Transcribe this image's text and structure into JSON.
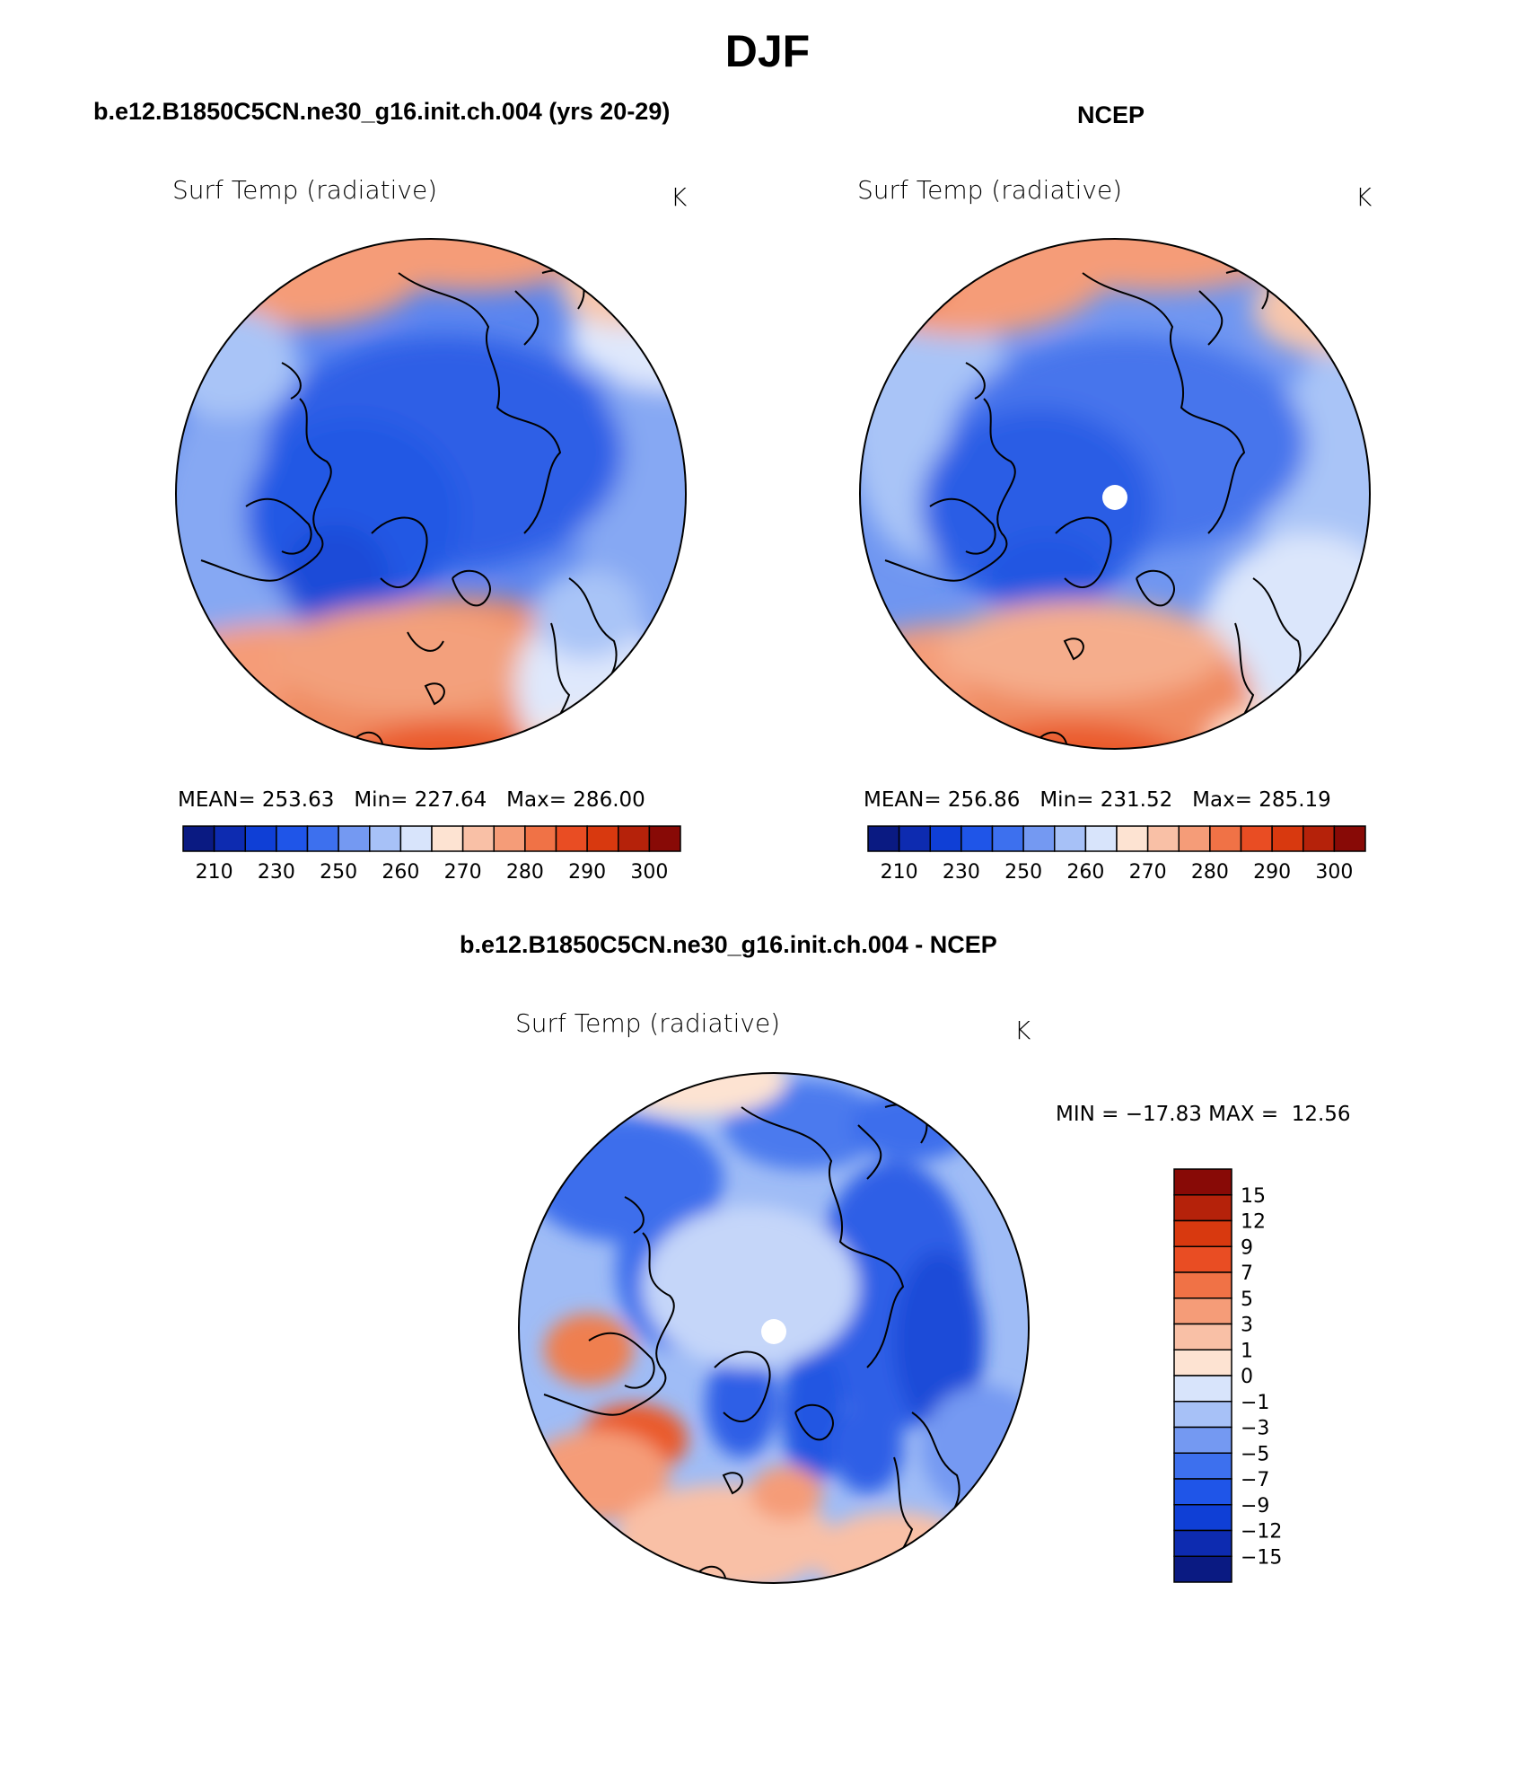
{
  "page": {
    "title": "DJF",
    "colors": {
      "deep_blue": "#1f4fdc",
      "mid_blue": "#4f7ff0",
      "light_blue": "#a9c4f7",
      "pale_blue": "#dbe6fb",
      "pale_orange": "#f9d3bd",
      "orange": "#f08a60",
      "red_orange": "#ea5a2c"
    }
  },
  "panels": {
    "model": {
      "header": "b.e12.B1850C5CN.ne30_g16.init.ch.004 (yrs 20-29)",
      "variable": "Surf Temp (radiative)",
      "units": "K",
      "stats": {
        "mean_label": "MEAN=",
        "mean": "253.63",
        "min_label": "Min=",
        "min": "227.64",
        "max_label": "Max=",
        "max": "286.00"
      }
    },
    "obs": {
      "header": "NCEP",
      "variable": "Surf Temp (radiative)",
      "units": "K",
      "stats": {
        "mean_label": "MEAN=",
        "mean": "256.86",
        "min_label": "Min=",
        "min": "231.52",
        "max_label": "Max=",
        "max": "285.19"
      }
    },
    "diff": {
      "header": "b.e12.B1850C5CN.ne30_g16.init.ch.004 - NCEP",
      "variable": "Surf Temp (radiative)",
      "units": "K",
      "stats": {
        "min_label": "MIN =",
        "min": "−17.83",
        "max_label": "MAX =",
        "max": "12.56"
      }
    }
  },
  "colorbars": {
    "abs": {
      "colors": [
        "#0a1a82",
        "#0d2bb0",
        "#0f3fd6",
        "#1f55e8",
        "#3d70ee",
        "#7499f2",
        "#a7c1f7",
        "#d8e4fb",
        "#fde3d2",
        "#f9c0a6",
        "#f59c78",
        "#f07246",
        "#e94d23",
        "#d8390f",
        "#b5220a",
        "#880a06"
      ],
      "tick_labels": [
        "210",
        "230",
        "250",
        "260",
        "270",
        "280",
        "290",
        "300"
      ]
    },
    "diff": {
      "colors_top_to_bottom": [
        "#880a06",
        "#b5220a",
        "#d8390f",
        "#e94d23",
        "#f07246",
        "#f59c78",
        "#f9c0a6",
        "#fde3d2",
        "#d8e4fb",
        "#a7c1f7",
        "#7499f2",
        "#3d70ee",
        "#1f55e8",
        "#0f3fd6",
        "#0d2bb0",
        "#0a1a82"
      ],
      "tick_labels": [
        "15",
        "12",
        "9",
        "7",
        "5",
        "3",
        "1",
        "0",
        "−1",
        "−3",
        "−5",
        "−7",
        "−9",
        "−12",
        "−15"
      ]
    }
  }
}
